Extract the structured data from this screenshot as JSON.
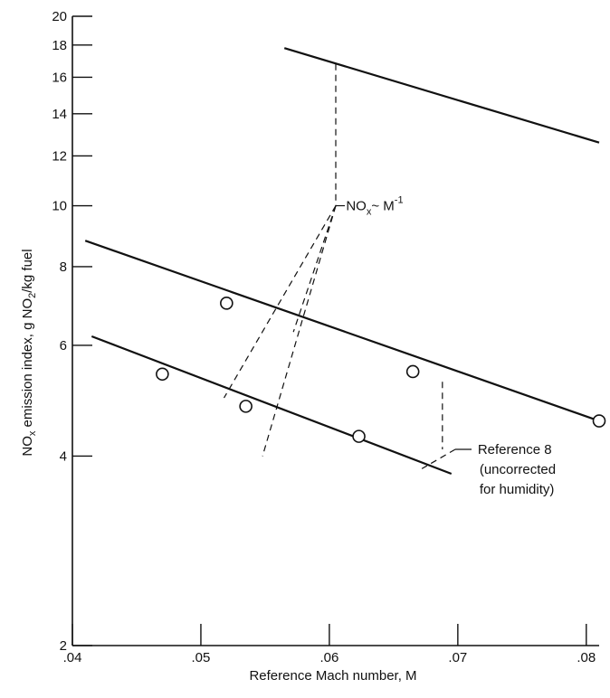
{
  "chart_data": {
    "type": "line",
    "title": "",
    "xlabel": "Reference Mach number, M",
    "ylabel": {
      "prefix": "NO",
      "sub1": "x",
      "middle": " emission index, g NO",
      "sub2": "2",
      "suffix": "/kg fuel"
    },
    "xlim": [
      0.04,
      0.081
    ],
    "ylim": [
      2,
      20
    ],
    "yscale": "log",
    "grid": false,
    "x_ticks": [
      0.04,
      0.05,
      0.06,
      0.07,
      0.08
    ],
    "x_tick_labels": [
      ".04",
      ".05",
      ".06",
      ".07",
      ".08"
    ],
    "y_ticks": [
      2,
      4,
      6,
      8,
      10,
      12,
      14,
      16,
      18,
      20
    ],
    "y_tick_labels": [
      "2",
      "4",
      "6",
      "8",
      "10",
      "12",
      "14",
      "16",
      "18",
      "20"
    ],
    "series": [
      {
        "kind": "line",
        "x": [
          0.041,
          0.081
        ],
        "y": [
          8.8,
          4.55
        ]
      },
      {
        "kind": "points",
        "x": [
          0.052,
          0.0665,
          0.081
        ],
        "y": [
          7.0,
          5.45,
          4.55
        ]
      },
      {
        "kind": "line",
        "x": [
          0.0415,
          0.0695
        ],
        "y": [
          6.2,
          3.75
        ]
      },
      {
        "kind": "points",
        "x": [
          0.047,
          0.0535,
          0.0623
        ],
        "y": [
          5.4,
          4.8,
          4.3
        ]
      },
      {
        "kind": "line",
        "x": [
          0.0565,
          0.081
        ],
        "y": [
          17.8,
          12.6
        ]
      }
    ],
    "dashed_guides": [
      {
        "x": [
          0.0605,
          0.0605
        ],
        "y": [
          16.8,
          10.0
        ]
      },
      {
        "x": [
          0.0605,
          0.0518
        ],
        "y": [
          10.0,
          4.95
        ]
      },
      {
        "x": [
          0.0605,
          0.0572
        ],
        "y": [
          10.0,
          6.3
        ]
      },
      {
        "x": [
          0.0605,
          0.0548
        ],
        "y": [
          10.0,
          4.0
        ]
      },
      {
        "x": [
          0.0688,
          0.0688
        ],
        "y": [
          5.25,
          4.1
        ]
      },
      {
        "x": [
          0.0698,
          0.0672
        ],
        "y": [
          4.1,
          3.82
        ]
      }
    ],
    "annotations": [
      {
        "id": "mach-relation",
        "parts": [
          "NO",
          "x",
          "~ M",
          "-1"
        ],
        "x": 0.0613,
        "y": 10.0
      },
      {
        "id": "reference-8",
        "lines": [
          "Reference 8",
          "(uncorrected",
          "for humidity)"
        ],
        "x": 0.07,
        "y": 4.1
      }
    ]
  }
}
